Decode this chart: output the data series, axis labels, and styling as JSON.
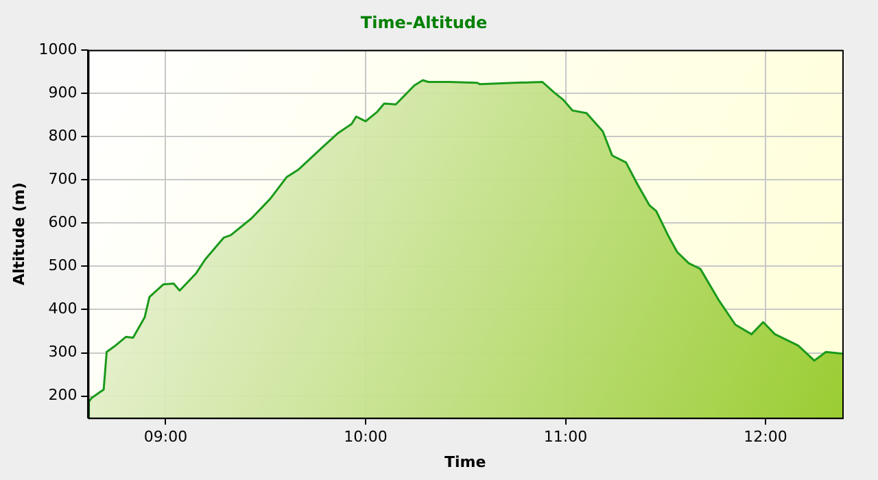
{
  "chart_data": {
    "type": "area",
    "title": "Time-Altitude",
    "xlabel": "Time",
    "ylabel": "Altitude (m)",
    "x": [
      8.612,
      8.616,
      8.628,
      8.674,
      8.69,
      8.705,
      8.744,
      8.802,
      8.837,
      8.895,
      8.919,
      8.988,
      9.04,
      9.07,
      9.151,
      9.198,
      9.29,
      9.326,
      9.43,
      9.523,
      9.605,
      9.663,
      9.779,
      9.86,
      9.93,
      9.953,
      10.0,
      10.058,
      10.093,
      10.151,
      10.244,
      10.286,
      10.314,
      10.419,
      10.558,
      10.57,
      10.744,
      10.884,
      10.942,
      10.988,
      11.035,
      11.105,
      11.186,
      11.233,
      11.302,
      11.36,
      11.419,
      11.453,
      11.512,
      11.558,
      11.616,
      11.674,
      11.767,
      11.849,
      11.93,
      11.988,
      12.047,
      12.163,
      12.244,
      12.302,
      12.384
    ],
    "series": [
      {
        "color": "#1a9a1a",
        "values": [
          150,
          187,
          195,
          210,
          215,
          302,
          315,
          337,
          335,
          382,
          429,
          458,
          460,
          444,
          483,
          516,
          566,
          572,
          611,
          656,
          706,
          723,
          773,
          807,
          829,
          846,
          835,
          857,
          876,
          874,
          918,
          930,
          926,
          926,
          924,
          921,
          924,
          926,
          902,
          885,
          860,
          854,
          812,
          756,
          740,
          689,
          641,
          628,
          572,
          533,
          507,
          494,
          421,
          365,
          343,
          371,
          343,
          317,
          282,
          302,
          298
        ]
      }
    ],
    "xlim": [
      8.612,
      12.384
    ],
    "xticks": [
      {
        "value": 9,
        "label": "09:00"
      },
      {
        "value": 10,
        "label": "10:00"
      },
      {
        "value": 11,
        "label": "11:00"
      },
      {
        "value": 12,
        "label": "12:00"
      }
    ],
    "ylim": [
      150,
      1000
    ],
    "yticks": [
      200,
      300,
      400,
      500,
      600,
      700,
      800,
      900,
      1000
    ],
    "grid": true,
    "legend": false,
    "marker": "none",
    "line_style": "solid"
  }
}
